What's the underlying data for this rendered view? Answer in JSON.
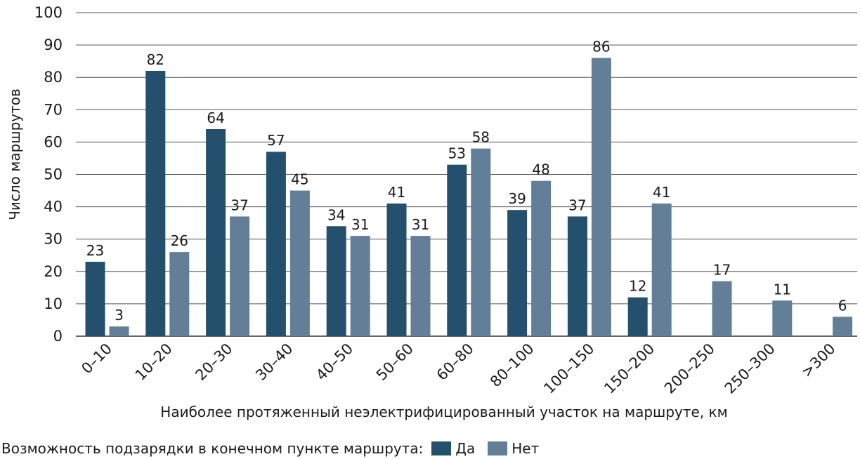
{
  "chart_data": {
    "type": "bar",
    "xlabel": "Наиболее протяженный неэлектрифицированный участок на маршруте, км",
    "ylabel": "Число маршрутов",
    "ylim": [
      0,
      100
    ],
    "yticks": [
      0,
      10,
      20,
      30,
      40,
      50,
      60,
      70,
      80,
      90,
      100
    ],
    "grid": true,
    "categories": [
      "0–10",
      "10–20",
      "20–30",
      "30–40",
      "40–50",
      "50–60",
      "60–80",
      "80–100",
      "100–150",
      "150–200",
      "200–250",
      "250–300",
      ">300"
    ],
    "series": [
      {
        "name": "Да",
        "color": "#24506e",
        "values": [
          23,
          82,
          64,
          57,
          34,
          41,
          53,
          39,
          37,
          12,
          null,
          null,
          null
        ]
      },
      {
        "name": "Нет",
        "color": "#637f98",
        "values": [
          3,
          26,
          37,
          45,
          31,
          31,
          58,
          48,
          86,
          41,
          17,
          11,
          6
        ]
      }
    ],
    "legend": {
      "title": "Возможность подзарядки в конечном пункте маршрута:",
      "position": "bottom-left"
    }
  }
}
